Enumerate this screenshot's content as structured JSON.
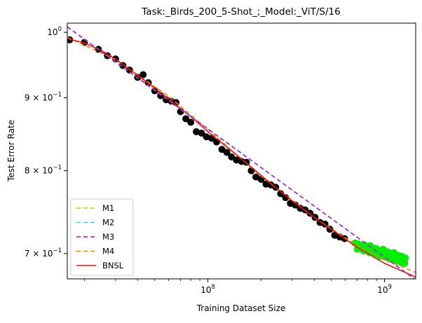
{
  "chart_data": {
    "type": "line",
    "title": "Task:_Birds_200_5-Shot_;_Model:_ViT/S/16",
    "xlabel": "Training Dataset Size",
    "ylabel": "Test Error Rate",
    "xscale": "log",
    "yscale": "log",
    "xlim": [
      16000000,
      1500000000
    ],
    "ylim": [
      0.672,
      1.015
    ],
    "x_ticks": [
      {
        "value": 100000000,
        "base": "10",
        "exp": "8"
      },
      {
        "value": 1000000000,
        "base": "10",
        "exp": "9"
      }
    ],
    "y_ticks": [
      {
        "value": 1.0,
        "base": "10",
        "exp": "0",
        "prefix": ""
      },
      {
        "value": 0.9,
        "base": "10",
        "exp": "−1",
        "prefix": "9 × "
      },
      {
        "value": 0.8,
        "base": "10",
        "exp": "−1",
        "prefix": "8 × "
      },
      {
        "value": 0.7,
        "base": "10",
        "exp": "−1",
        "prefix": "7 × "
      }
    ],
    "grid": false,
    "legend_position": "lower-left",
    "train_points": {
      "color": "#000000",
      "x": [
        16500000,
        20000000,
        24000000,
        27000000,
        30000000,
        33000000,
        36000000,
        40000000,
        43000000,
        46000000,
        50000000,
        54000000,
        58000000,
        62000000,
        66000000,
        70000000,
        75000000,
        80000000,
        86000000,
        92000000,
        98000000,
        105000000,
        112000000,
        120000000,
        128000000,
        136000000,
        145000000,
        155000000,
        165000000,
        176000000,
        187000000,
        200000000,
        213000000,
        227000000,
        242000000,
        258000000,
        275000000,
        293000000,
        312000000,
        333000000,
        355000000,
        379000000,
        404000000,
        431000000,
        460000000,
        490000000,
        522000000,
        557000000,
        594000000
      ],
      "y": [
        0.988,
        0.984,
        0.973,
        0.963,
        0.958,
        0.948,
        0.941,
        0.93,
        0.934,
        0.922,
        0.91,
        0.903,
        0.897,
        0.895,
        0.893,
        0.88,
        0.87,
        0.865,
        0.852,
        0.85,
        0.845,
        0.843,
        0.838,
        0.828,
        0.824,
        0.818,
        0.814,
        0.812,
        0.811,
        0.8,
        0.792,
        0.789,
        0.783,
        0.782,
        0.779,
        0.771,
        0.766,
        0.759,
        0.757,
        0.753,
        0.751,
        0.747,
        0.742,
        0.736,
        0.734,
        0.728,
        0.721,
        0.719,
        0.717
      ]
    },
    "extrapolation_points": {
      "color": "#00ee00",
      "x": [
        680000000,
        710000000,
        740000000,
        770000000,
        800000000,
        830000000,
        860000000,
        890000000,
        920000000,
        950000000,
        980000000,
        1010000000,
        1040000000,
        1070000000,
        1100000000,
        1130000000,
        1160000000,
        1190000000,
        1220000000,
        1250000000,
        1280000000,
        1310000000,
        700000000,
        760000000,
        820000000,
        880000000,
        940000000,
        1000000000,
        1060000000,
        1120000000,
        1180000000,
        1240000000,
        1300000000,
        730000000,
        850000000,
        970000000,
        1090000000,
        1210000000
      ],
      "y": [
        0.712,
        0.711,
        0.708,
        0.71,
        0.707,
        0.709,
        0.705,
        0.706,
        0.704,
        0.703,
        0.705,
        0.701,
        0.702,
        0.7,
        0.699,
        0.701,
        0.697,
        0.698,
        0.696,
        0.697,
        0.694,
        0.695,
        0.705,
        0.703,
        0.701,
        0.699,
        0.697,
        0.696,
        0.694,
        0.693,
        0.692,
        0.69,
        0.689,
        0.709,
        0.702,
        0.698,
        0.695,
        0.693
      ]
    },
    "series": [
      {
        "name": "M1",
        "color": "#cccc00",
        "dash": "dashed",
        "x": [
          16000000,
          1500000000
        ],
        "y": [
          1.009,
          0.671
        ]
      },
      {
        "name": "M2",
        "color": "#00eeee",
        "dash": "dashed",
        "x": [
          16000000,
          1500000000
        ],
        "y": [
          1.009,
          0.671
        ]
      },
      {
        "name": "M3",
        "color": "#cc00cc",
        "dash": "dashed",
        "x": [
          16000000,
          1500000000
        ],
        "y": [
          1.009,
          0.671
        ]
      },
      {
        "name": "M4",
        "color": "#ee8800",
        "dash": "dashed",
        "x": [
          16000000,
          30000000,
          60000000,
          100000000,
          200000000,
          400000000,
          700000000,
          1000000000,
          1500000000
        ],
        "y": [
          0.992,
          0.957,
          0.902,
          0.855,
          0.793,
          0.742,
          0.709,
          0.693,
          0.679
        ]
      },
      {
        "name": "BNSL",
        "color": "#ee1111",
        "dash": "solid",
        "x": [
          16000000,
          20000000,
          25000000,
          30000000,
          40000000,
          50000000,
          60000000,
          80000000,
          100000000,
          150000000,
          200000000,
          300000000,
          400000000,
          550000000,
          700000000,
          1000000000,
          1500000000
        ],
        "y": [
          0.99,
          0.983,
          0.971,
          0.958,
          0.933,
          0.914,
          0.898,
          0.873,
          0.852,
          0.818,
          0.794,
          0.762,
          0.742,
          0.722,
          0.707,
          0.689,
          0.674
        ]
      }
    ],
    "overlay_line": {
      "color": "#a033dd",
      "dash": "dashed",
      "x": [
        16000000,
        1500000000
      ],
      "y": [
        1.009,
        0.671
      ]
    }
  }
}
